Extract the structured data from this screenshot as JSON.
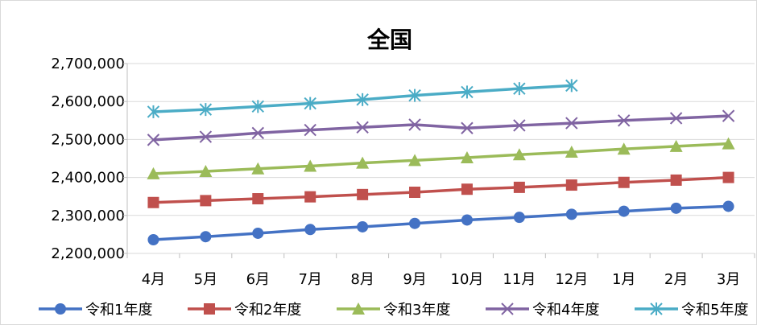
{
  "chart_data": {
    "type": "line",
    "title": "全国",
    "xlabel": "",
    "ylabel": "",
    "categories": [
      "4月",
      "5月",
      "6月",
      "7月",
      "8月",
      "9月",
      "10月",
      "11月",
      "12月",
      "1月",
      "2月",
      "3月"
    ],
    "ylim": [
      2200000,
      2700000
    ],
    "yticks": [
      2200000,
      2300000,
      2400000,
      2500000,
      2600000,
      2700000
    ],
    "ytick_labels": [
      "2,200,000",
      "2,300,000",
      "2,400,000",
      "2,500,000",
      "2,600,000",
      "2,700,000"
    ],
    "grid": "horizontal",
    "legend_position": "bottom",
    "series": [
      {
        "name": "令和1年度",
        "color": "#4472c4",
        "marker": "circle",
        "values": [
          2236000,
          2244000,
          2253000,
          2263000,
          2270000,
          2279000,
          2288000,
          2295000,
          2303000,
          2311000,
          2319000,
          2324000
        ]
      },
      {
        "name": "令和2年度",
        "color": "#c0504d",
        "marker": "square",
        "values": [
          2334000,
          2339000,
          2344000,
          2349000,
          2355000,
          2361000,
          2369000,
          2374000,
          2380000,
          2387000,
          2393000,
          2400000
        ]
      },
      {
        "name": "令和3年度",
        "color": "#9bbb59",
        "marker": "triangle",
        "values": [
          2410000,
          2416000,
          2423000,
          2430000,
          2438000,
          2445000,
          2452000,
          2460000,
          2467000,
          2475000,
          2482000,
          2489000
        ]
      },
      {
        "name": "令和4年度",
        "color": "#8064a2",
        "marker": "x",
        "values": [
          2499000,
          2507000,
          2517000,
          2525000,
          2532000,
          2539000,
          2530000,
          2537000,
          2543000,
          2550000,
          2556000,
          2562000
        ]
      },
      {
        "name": "令和5年度",
        "color": "#4bacc6",
        "marker": "star",
        "values": [
          2573000,
          2579000,
          2587000,
          2595000,
          2605000,
          2616000,
          2625000,
          2634000,
          2642000,
          null,
          null,
          null
        ]
      }
    ]
  }
}
